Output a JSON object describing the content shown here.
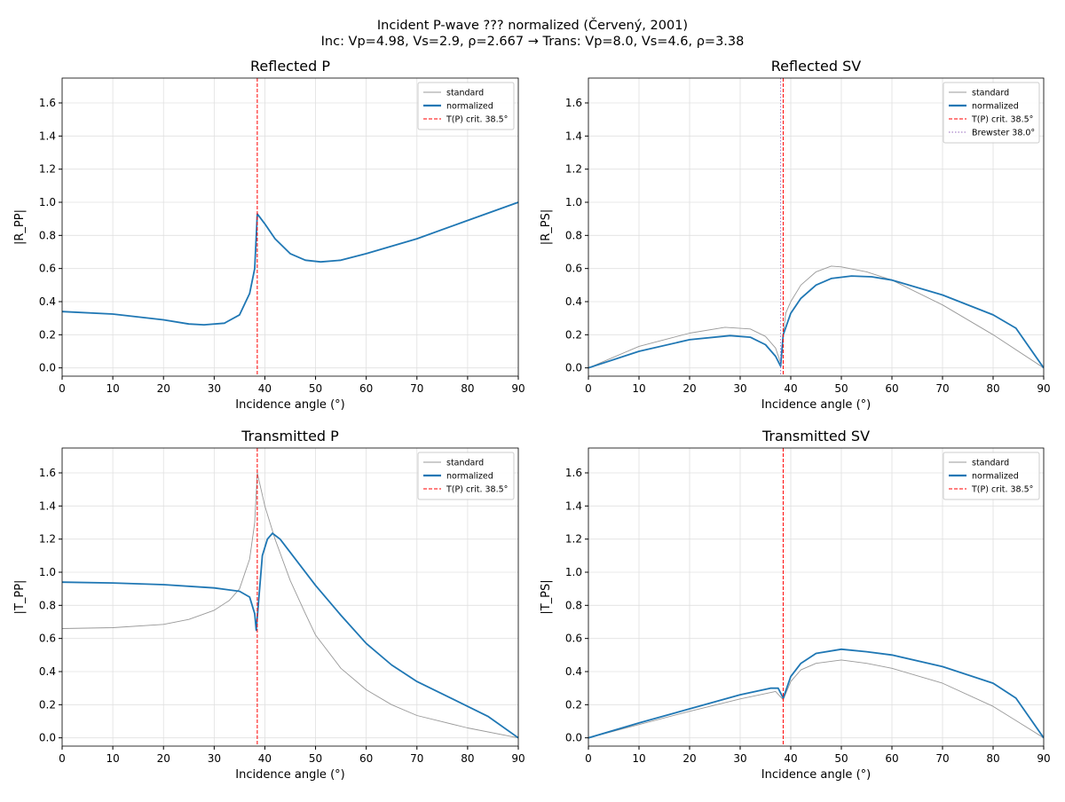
{
  "suptitle": [
    "Incident P-wave ??? normalized (Červený, 2001)",
    "Inc: Vp=4.98, Vs=2.9, ρ=2.667  →  Trans: Vp=8.0, Vs=4.6, ρ=3.38"
  ],
  "colors": {
    "standard": "#999999",
    "normalized": "#1f77b4",
    "critical": "#ff0000",
    "brewster": "#9467bd",
    "grid": "#e0e0e0"
  },
  "chart_data": [
    {
      "type": "line",
      "title": "Reflected P",
      "xlabel": "Incidence angle (°)",
      "ylabel": "|R_PP|",
      "xlim": [
        0,
        90
      ],
      "ylim": [
        -0.05,
        1.75
      ],
      "grid": true,
      "legend": "top-right",
      "xticks": [
        0,
        10,
        20,
        30,
        40,
        50,
        60,
        70,
        80,
        90
      ],
      "yticks": [
        0.0,
        0.2,
        0.4,
        0.6,
        0.8,
        1.0,
        1.2,
        1.4,
        1.6
      ],
      "vlines": [
        {
          "name": "T(P) crit. 38.5°",
          "x": 38.5,
          "style": "dashed",
          "color": "critical"
        }
      ],
      "series": [
        {
          "name": "standard",
          "color": "standard",
          "points": [
            [
              0,
              0.34
            ],
            [
              10,
              0.325
            ],
            [
              20,
              0.29
            ],
            [
              25,
              0.265
            ],
            [
              28,
              0.26
            ],
            [
              32,
              0.27
            ],
            [
              35,
              0.32
            ],
            [
              37,
              0.45
            ],
            [
              38,
              0.6
            ],
            [
              38.5,
              0.93
            ],
            [
              40,
              0.87
            ],
            [
              42,
              0.78
            ],
            [
              45,
              0.69
            ],
            [
              48,
              0.65
            ],
            [
              51,
              0.64
            ],
            [
              55,
              0.65
            ],
            [
              60,
              0.69
            ],
            [
              70,
              0.78
            ],
            [
              80,
              0.89
            ],
            [
              90,
              1.0
            ]
          ]
        },
        {
          "name": "normalized",
          "color": "normalized",
          "points": [
            [
              0,
              0.34
            ],
            [
              10,
              0.325
            ],
            [
              20,
              0.29
            ],
            [
              25,
              0.265
            ],
            [
              28,
              0.26
            ],
            [
              32,
              0.27
            ],
            [
              35,
              0.32
            ],
            [
              37,
              0.45
            ],
            [
              38,
              0.6
            ],
            [
              38.5,
              0.93
            ],
            [
              40,
              0.87
            ],
            [
              42,
              0.78
            ],
            [
              45,
              0.69
            ],
            [
              48,
              0.65
            ],
            [
              51,
              0.64
            ],
            [
              55,
              0.65
            ],
            [
              60,
              0.69
            ],
            [
              70,
              0.78
            ],
            [
              80,
              0.89
            ],
            [
              90,
              1.0
            ]
          ]
        }
      ]
    },
    {
      "type": "line",
      "title": "Reflected SV",
      "xlabel": "Incidence angle (°)",
      "ylabel": "|R_PS|",
      "xlim": [
        0,
        90
      ],
      "ylim": [
        -0.05,
        1.75
      ],
      "grid": true,
      "legend": "top-right",
      "xticks": [
        0,
        10,
        20,
        30,
        40,
        50,
        60,
        70,
        80,
        90
      ],
      "yticks": [
        0.0,
        0.2,
        0.4,
        0.6,
        0.8,
        1.0,
        1.2,
        1.4,
        1.6
      ],
      "vlines": [
        {
          "name": "T(P) crit. 38.5°",
          "x": 38.5,
          "style": "dashed",
          "color": "critical"
        },
        {
          "name": "Brewster 38.0°",
          "x": 38.0,
          "style": "dotted",
          "color": "brewster"
        }
      ],
      "series": [
        {
          "name": "standard",
          "color": "standard",
          "points": [
            [
              0,
              0
            ],
            [
              10,
              0.13
            ],
            [
              20,
              0.21
            ],
            [
              27,
              0.245
            ],
            [
              32,
              0.235
            ],
            [
              35,
              0.19
            ],
            [
              37,
              0.12
            ],
            [
              38,
              0.03
            ],
            [
              38.5,
              0.2
            ],
            [
              39,
              0.33
            ],
            [
              40,
              0.4
            ],
            [
              42,
              0.5
            ],
            [
              45,
              0.58
            ],
            [
              48,
              0.615
            ],
            [
              50,
              0.61
            ],
            [
              55,
              0.58
            ],
            [
              60,
              0.53
            ],
            [
              70,
              0.38
            ],
            [
              80,
              0.2
            ],
            [
              90,
              0
            ]
          ]
        },
        {
          "name": "normalized",
          "color": "normalized",
          "points": [
            [
              0,
              0
            ],
            [
              10,
              0.1
            ],
            [
              20,
              0.17
            ],
            [
              28,
              0.195
            ],
            [
              32,
              0.185
            ],
            [
              35,
              0.14
            ],
            [
              37,
              0.07
            ],
            [
              38,
              0.01
            ],
            [
              38.5,
              0.2
            ],
            [
              40,
              0.33
            ],
            [
              42,
              0.42
            ],
            [
              45,
              0.5
            ],
            [
              48,
              0.54
            ],
            [
              52,
              0.555
            ],
            [
              56,
              0.55
            ],
            [
              60,
              0.53
            ],
            [
              70,
              0.44
            ],
            [
              80,
              0.32
            ],
            [
              84.5,
              0.24
            ],
            [
              90,
              0
            ]
          ]
        }
      ]
    },
    {
      "type": "line",
      "title": "Transmitted P",
      "xlabel": "Incidence angle (°)",
      "ylabel": "|T_PP|",
      "xlim": [
        0,
        90
      ],
      "ylim": [
        -0.05,
        1.75
      ],
      "grid": true,
      "legend": "top-right",
      "xticks": [
        0,
        10,
        20,
        30,
        40,
        50,
        60,
        70,
        80,
        90
      ],
      "yticks": [
        0.0,
        0.2,
        0.4,
        0.6,
        0.8,
        1.0,
        1.2,
        1.4,
        1.6
      ],
      "vlines": [
        {
          "name": "T(P) crit. 38.5°",
          "x": 38.5,
          "style": "dashed",
          "color": "critical"
        }
      ],
      "series": [
        {
          "name": "standard",
          "color": "standard",
          "points": [
            [
              0,
              0.66
            ],
            [
              10,
              0.665
            ],
            [
              20,
              0.685
            ],
            [
              25,
              0.715
            ],
            [
              30,
              0.77
            ],
            [
              33,
              0.83
            ],
            [
              35,
              0.9
            ],
            [
              37,
              1.08
            ],
            [
              38,
              1.3
            ],
            [
              38.5,
              1.6
            ],
            [
              40,
              1.4
            ],
            [
              42,
              1.2
            ],
            [
              45,
              0.95
            ],
            [
              48,
              0.75
            ],
            [
              50,
              0.62
            ],
            [
              55,
              0.42
            ],
            [
              60,
              0.29
            ],
            [
              65,
              0.2
            ],
            [
              70,
              0.135
            ],
            [
              80,
              0.06
            ],
            [
              90,
              0
            ]
          ]
        },
        {
          "name": "normalized",
          "color": "normalized",
          "points": [
            [
              0,
              0.94
            ],
            [
              10,
              0.935
            ],
            [
              20,
              0.925
            ],
            [
              30,
              0.905
            ],
            [
              35,
              0.885
            ],
            [
              37,
              0.85
            ],
            [
              38,
              0.75
            ],
            [
              38.3,
              0.65
            ],
            [
              38.7,
              0.8
            ],
            [
              39.5,
              1.1
            ],
            [
              40.5,
              1.2
            ],
            [
              41.5,
              1.235
            ],
            [
              43,
              1.2
            ],
            [
              45,
              1.12
            ],
            [
              50,
              0.92
            ],
            [
              55,
              0.74
            ],
            [
              60,
              0.57
            ],
            [
              65,
              0.44
            ],
            [
              70,
              0.34
            ],
            [
              80,
              0.19
            ],
            [
              84,
              0.13
            ],
            [
              90,
              0
            ]
          ]
        }
      ]
    },
    {
      "type": "line",
      "title": "Transmitted SV",
      "xlabel": "Incidence angle (°)",
      "ylabel": "|T_PS|",
      "xlim": [
        0,
        90
      ],
      "ylim": [
        -0.05,
        1.75
      ],
      "grid": true,
      "legend": "top-right",
      "xticks": [
        0,
        10,
        20,
        30,
        40,
        50,
        60,
        70,
        80,
        90
      ],
      "yticks": [
        0.0,
        0.2,
        0.4,
        0.6,
        0.8,
        1.0,
        1.2,
        1.4,
        1.6
      ],
      "vlines": [
        {
          "name": "T(P) crit. 38.5°",
          "x": 38.5,
          "style": "dashed",
          "color": "critical"
        }
      ],
      "series": [
        {
          "name": "standard",
          "color": "standard",
          "points": [
            [
              0,
              0
            ],
            [
              10,
              0.08
            ],
            [
              20,
              0.16
            ],
            [
              30,
              0.235
            ],
            [
              37,
              0.28
            ],
            [
              38.5,
              0.23
            ],
            [
              40,
              0.34
            ],
            [
              42,
              0.41
            ],
            [
              45,
              0.45
            ],
            [
              50,
              0.47
            ],
            [
              55,
              0.45
            ],
            [
              60,
              0.42
            ],
            [
              70,
              0.33
            ],
            [
              80,
              0.19
            ],
            [
              90,
              0
            ]
          ]
        },
        {
          "name": "normalized",
          "color": "normalized",
          "points": [
            [
              0,
              0
            ],
            [
              10,
              0.09
            ],
            [
              20,
              0.175
            ],
            [
              30,
              0.26
            ],
            [
              36,
              0.3
            ],
            [
              37.5,
              0.3
            ],
            [
              38.5,
              0.24
            ],
            [
              40,
              0.37
            ],
            [
              42,
              0.45
            ],
            [
              45,
              0.51
            ],
            [
              50,
              0.535
            ],
            [
              55,
              0.52
            ],
            [
              60,
              0.5
            ],
            [
              70,
              0.43
            ],
            [
              80,
              0.33
            ],
            [
              84.5,
              0.24
            ],
            [
              90,
              0
            ]
          ]
        }
      ]
    }
  ]
}
